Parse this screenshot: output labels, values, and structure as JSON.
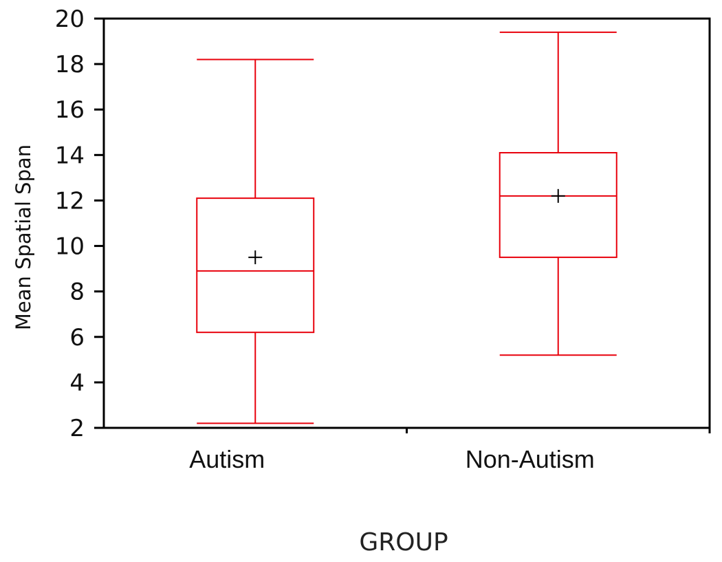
{
  "chart_data": {
    "type": "boxplot",
    "title": "",
    "xlabel": "GROUP",
    "ylabel": "Mean Spatial Span",
    "ylim": [
      2,
      20
    ],
    "yticks": [
      2,
      4,
      6,
      8,
      10,
      12,
      14,
      16,
      18,
      20
    ],
    "categories": [
      "Autism",
      "Non-Autism"
    ],
    "boxes": [
      {
        "category": "Autism",
        "min": 2.2,
        "q1": 6.2,
        "median": 8.9,
        "q3": 12.1,
        "max": 18.2,
        "mean": 9.5
      },
      {
        "category": "Non-Autism",
        "min": 5.2,
        "q1": 9.5,
        "median": 12.2,
        "q3": 14.1,
        "max": 19.4,
        "mean": 12.2
      }
    ],
    "color": "#e8000b",
    "grid": false
  }
}
